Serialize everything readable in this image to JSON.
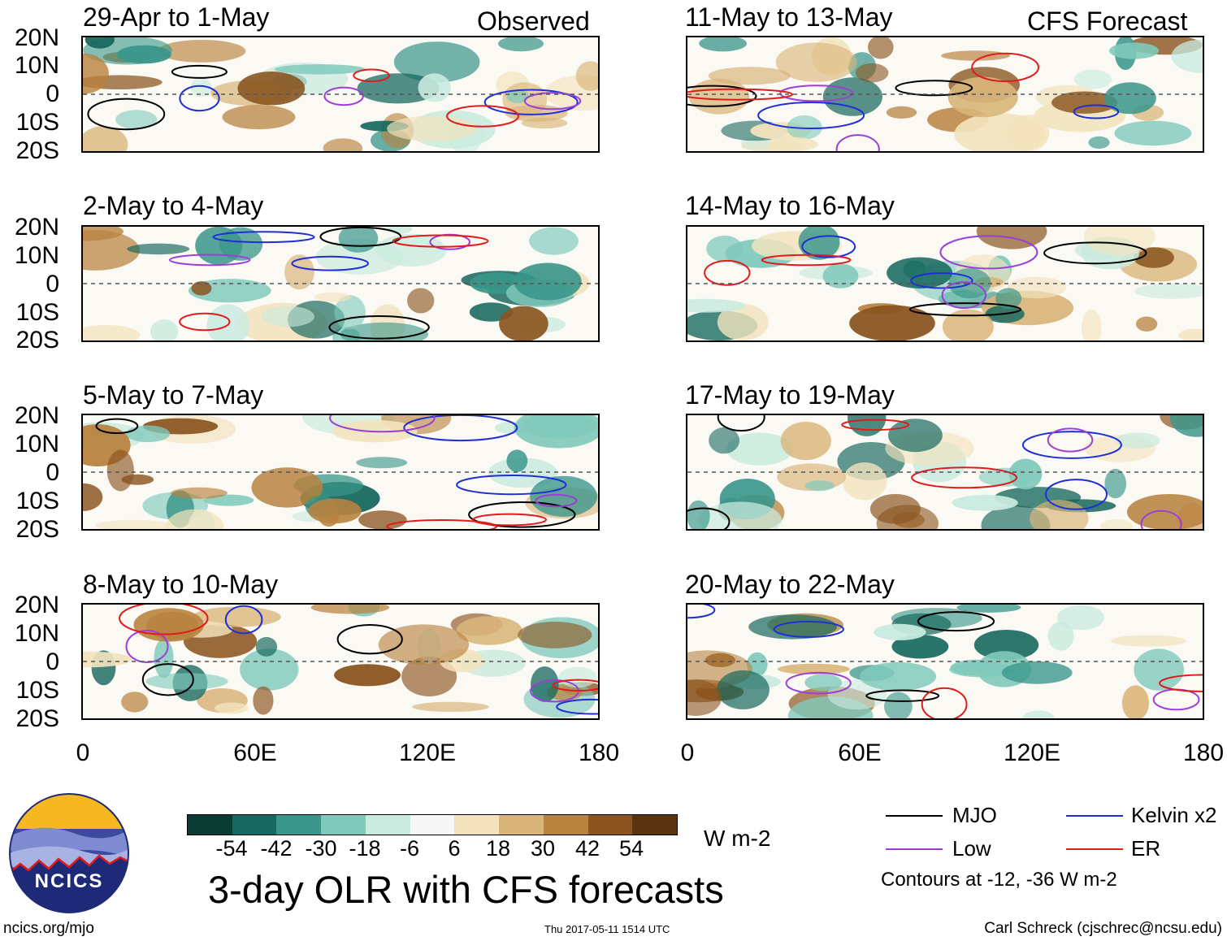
{
  "header": {
    "observed_tag": "Observed",
    "forecast_tag": "CFS Forecast"
  },
  "panels_left": [
    {
      "title": "29-Apr to 1-May"
    },
    {
      "title": "2-May to 4-May"
    },
    {
      "title": "5-May to 7-May"
    },
    {
      "title": "8-May to 10-May"
    }
  ],
  "panels_right": [
    {
      "title": "11-May to 13-May"
    },
    {
      "title": "14-May to 16-May"
    },
    {
      "title": "17-May to 19-May"
    },
    {
      "title": "20-May to 22-May"
    }
  ],
  "lat_labels": [
    "20N",
    "10N",
    "0",
    "10S",
    "20S"
  ],
  "lon_labels": [
    "0",
    "60E",
    "120E",
    "180"
  ],
  "colorbar": {
    "labels": [
      "-54",
      "-42",
      "-30",
      "-18",
      "-6",
      "6",
      "18",
      "30",
      "42",
      "54"
    ],
    "colors": [
      "#0b3b33",
      "#17685e",
      "#3a968a",
      "#7fc9bb",
      "#c9eadf",
      "#f7f7f7",
      "#f2e3bd",
      "#d9b57a",
      "#b8823f",
      "#8a5520",
      "#5a3310"
    ],
    "units": "W m-2"
  },
  "title": "3-day OLR with CFS forecasts",
  "legend": {
    "items": [
      {
        "label": "MJO",
        "color": "#000000"
      },
      {
        "label": "Kelvin x2",
        "color": "#1f2fd6"
      },
      {
        "label": "Low",
        "color": "#9b3fd8"
      },
      {
        "label": "ER",
        "color": "#e01b1b"
      }
    ],
    "note": "Contours at -12, -36 W m-2"
  },
  "logo_text": "NCICS",
  "footer": {
    "website": "ncics.org/mjo",
    "timestamp": "Thu 2017-05-11 1514 UTC",
    "author": "Carl Schreck (cjschrec@ncsu.edu)"
  }
}
